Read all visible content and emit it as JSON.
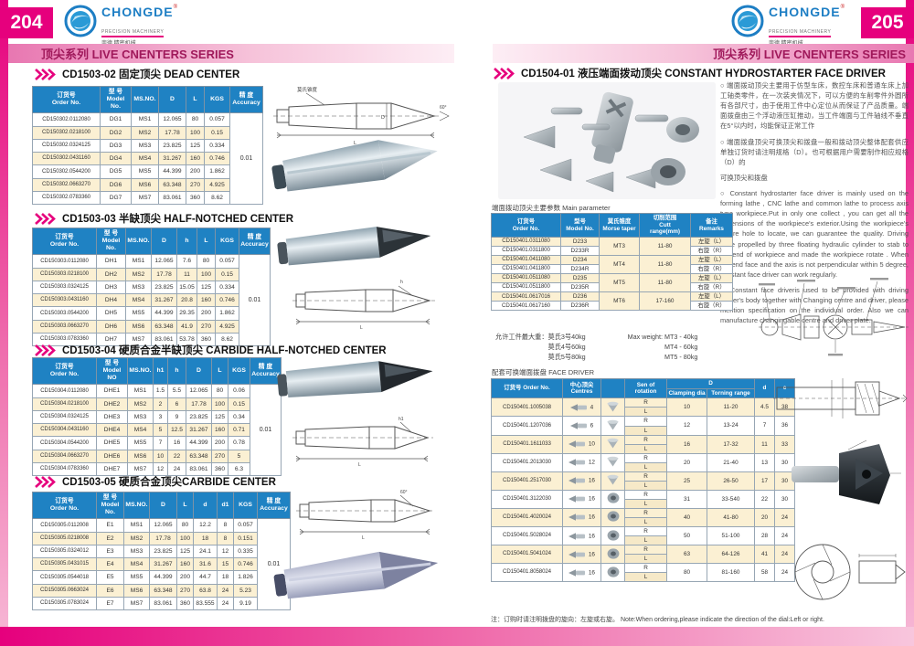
{
  "brand": {
    "name": "CHONGDE",
    "registered": "®",
    "subtitle": "PRECISION MACHINERY",
    "chinese": "崇德 精密机械"
  },
  "page_left": {
    "page_number": "204",
    "banner": "顶尖系列  LIVE CNENTERS SERIES",
    "sections": [
      {
        "title": "CD1503-02 固定顶尖 DEAD CENTER",
        "table": {
          "headers": [
            "订货号\nOrder No.",
            "型 号\nModel No.",
            "MS.NO.",
            "D",
            "L",
            "KGS"
          ],
          "accuracy_header": "精 度\nAccuracy",
          "accuracy": "0.01",
          "rows": [
            [
              "CD150302.0112080",
              "DG1",
              "MS1",
              "12.065",
              "80",
              "0.057"
            ],
            [
              "CD150302.0218100",
              "DG2",
              "MS2",
              "17.78",
              "100",
              "0.15"
            ],
            [
              "CD150302.0324125",
              "DG3",
              "MS3",
              "23.825",
              "125",
              "0.334"
            ],
            [
              "CD150302.0431160",
              "DG4",
              "MS4",
              "31.267",
              "160",
              "0.746"
            ],
            [
              "CD150302.0544200",
              "DG5",
              "MS5",
              "44.399",
              "200",
              "1.862"
            ],
            [
              "CD150302.0663270",
              "DG6",
              "MS6",
              "63.348",
              "270",
              "4.925"
            ],
            [
              "CD150302.0783360",
              "DG7",
              "MS7",
              "83.061",
              "360",
              "8.62"
            ]
          ]
        }
      },
      {
        "title": "CD1503-03 半缺顶尖 HALF-NOTCHED CENTER",
        "table": {
          "headers": [
            "订货号\nOrder No.",
            "型 号\nModel No.",
            "MS.NO.",
            "D",
            "h",
            "L",
            "KGS"
          ],
          "accuracy_header": "精 度\nAccuracy",
          "accuracy": "0.01",
          "rows": [
            [
              "CD150303.0112080",
              "DH1",
              "MS1",
              "12.065",
              "7.6",
              "80",
              "0.057"
            ],
            [
              "CD150303.0218100",
              "DH2",
              "MS2",
              "17.78",
              "11",
              "100",
              "0.15"
            ],
            [
              "CD150303.0324125",
              "DH3",
              "MS3",
              "23.825",
              "15.05",
              "125",
              "0.334"
            ],
            [
              "CD150303.0431160",
              "DH4",
              "MS4",
              "31.267",
              "20.8",
              "160",
              "0.746"
            ],
            [
              "CD150303.0544200",
              "DH5",
              "MS5",
              "44.399",
              "29.35",
              "200",
              "1.862"
            ],
            [
              "CD150303.0663270",
              "DH6",
              "MS6",
              "63.348",
              "41.9",
              "270",
              "4.925"
            ],
            [
              "CD150303.0783360",
              "DH7",
              "MS7",
              "83.061",
              "53.78",
              "360",
              "8.62"
            ]
          ]
        }
      },
      {
        "title": "CD1503-04 硬质合金半缺顶尖 CARBIDE HALF-NOTCHED CENTER",
        "table": {
          "headers": [
            "订货号\nOrder No.",
            "型 号\nModel NO",
            "MS.NO.",
            "h1",
            "h",
            "D",
            "L",
            "KGS"
          ],
          "accuracy_header": "精 度\nAccuracy",
          "accuracy": "0.01",
          "rows": [
            [
              "CD150304.0112080",
              "DHE1",
              "MS1",
              "1.5",
              "5.5",
              "12.065",
              "80",
              "0.06"
            ],
            [
              "CD150304.0218100",
              "DHE2",
              "MS2",
              "2",
              "6",
              "17.78",
              "100",
              "0.15"
            ],
            [
              "CD150304.0324125",
              "DHE3",
              "MS3",
              "3",
              "9",
              "23.825",
              "125",
              "0.34"
            ],
            [
              "CD150304.0431160",
              "DHE4",
              "MS4",
              "5",
              "12.5",
              "31.267",
              "160",
              "0.71"
            ],
            [
              "CD150304.0544200",
              "DHE5",
              "MS5",
              "7",
              "16",
              "44.399",
              "200",
              "0.78"
            ],
            [
              "CD150304.0663270",
              "DHE6",
              "MS6",
              "10",
              "22",
              "63.348",
              "270",
              "5"
            ],
            [
              "CD150304.0783360",
              "DHE7",
              "MS7",
              "12",
              "24",
              "83.061",
              "360",
              "6.3"
            ]
          ]
        }
      },
      {
        "title": "CD1503-05 硬质合金顶尖CARBIDE CENTER",
        "table": {
          "headers": [
            "订货号\nOrder No.",
            "型 号\nModel No.",
            "MS.NO.",
            "D",
            "L",
            "d",
            "d1",
            "KGS"
          ],
          "accuracy_header": "精 度\nAccuracy",
          "accuracy": "0.01",
          "rows": [
            [
              "CD150305.0112008",
              "E1",
              "MS1",
              "12.065",
              "80",
              "12.2",
              "8",
              "0.057"
            ],
            [
              "CD150305.0218008",
              "E2",
              "MS2",
              "17.78",
              "100",
              "18",
              "8",
              "0.151"
            ],
            [
              "CD150305.0324012",
              "E3",
              "MS3",
              "23.825",
              "125",
              "24.1",
              "12",
              "0.335"
            ],
            [
              "CD150305.0431015",
              "E4",
              "MS4",
              "31.267",
              "160",
              "31.6",
              "15",
              "0.746"
            ],
            [
              "CD150305.0544018",
              "E5",
              "MS5",
              "44.399",
              "200",
              "44.7",
              "18",
              "1.826"
            ],
            [
              "CD150305.0663024",
              "E6",
              "MS6",
              "63.348",
              "270",
              "63.8",
              "24",
              "5.23"
            ],
            [
              "CD150305.0783024",
              "E7",
              "MS7",
              "83.061",
              "360",
              "83.555",
              "24",
              "9.19"
            ]
          ]
        }
      }
    ]
  },
  "page_right": {
    "page_number": "205",
    "banner": "顶尖系列  LIVE CNENTERS SERIES",
    "title": "CD1504-01 液压端面拨动顶尖 CONSTANT HYDROSTARTER FACE DRIVER",
    "description": {
      "zh": [
        "○ 端面拨动顶尖主要用于仿型车床，数控车床和普通车床上加工轴类零件，在一次装夹情况下，可以方便的车削零件外圆所有各部尺寸，由于使用工件中心定位从而保证了产品质量。端面拨盘由三个浮动液压缸推动，当工件端面与工件轴线不垂直在5°以内时，均能保证正常工作",
        "○ 端面拨盘顶尖可换顶尖和拨盘一般和拨动顶尖整体配套供应单独订货时请注明规格（D）。也可根据用户需要制作相应规格（D）的",
        "可换顶尖和拨盘"
      ],
      "en": [
        "○ Constant hydrostarter face driver is mainly used on the forming lathe , CNC lathe and common lathe to process axis type workpiece.Put in only one collect , you can get all the dimensions of the workpiece's exterior.Using the workpiece's centre hole to locate, we can guarantee the quality. Driving plate propelled by three floating hydraulic cylinder to stab to the end of workpiece and made the workpiece rotate . When the end face and the axis is not perpendicular within 5 degree, constant face driver can work regularly.",
        "○ Constant face driveris used to be provided with driving center's body together with Changing centre and driver, please mention specification on the individual order. Also we can manufacture changingable centre and driver plate."
      ]
    },
    "main_param": {
      "caption": "端面拨动顶尖主要参数 Main parameter",
      "headers": [
        "订货号\nOrder No.",
        "型号\nModel No.",
        "莫氏锥度\nMorse taper",
        "切削范围\nCutt\nrange(mm)",
        "备注\nRemarks"
      ],
      "groups": [
        {
          "taper": "MT3",
          "range": "11-80",
          "rows": [
            [
              "CD150401.0311080",
              "D233",
              "左旋（L）"
            ],
            [
              "CD150401.0311800",
              "D233R",
              "右旋（R）"
            ]
          ]
        },
        {
          "taper": "MT4",
          "range": "11-80",
          "rows": [
            [
              "CD150401.0411080",
              "D234",
              "左旋（L）"
            ],
            [
              "CD150401.0411800",
              "D234R",
              "右旋（R）"
            ]
          ]
        },
        {
          "taper": "MT5",
          "range": "11-80",
          "rows": [
            [
              "CD150401.0511080",
              "D235",
              "左旋（L）"
            ],
            [
              "CD150401.0511800",
              "D235R",
              "右旋（R）"
            ]
          ]
        },
        {
          "taper": "MT6",
          "range": "17-160",
          "rows": [
            [
              "CD150401.0617016",
              "D236",
              "左旋（L）"
            ],
            [
              "CD150401.0617160",
              "D236R",
              "右旋（R）"
            ]
          ]
        }
      ]
    },
    "weights": {
      "zh_label": "允许工件最大重：",
      "zh_lines": [
        "莫氏3号40kg",
        "莫氏4号60kg",
        "莫氏5号80kg"
      ],
      "en_label": "Max weight:",
      "en_lines": [
        "MT3 - 40kg",
        "MT4 - 60kg",
        "MT5 - 80kg"
      ]
    },
    "face_driver": {
      "caption": "配套可换端面拨盘  FACE DRIVER",
      "headers": {
        "order": "订货号 Order No.",
        "centres": "中心顶尖\nCentres",
        "sen": "Sen of rotation",
        "d_group": "D",
        "clamp": "Clamping dia",
        "torn": "Torning range",
        "d": "d",
        "c": "c"
      },
      "sen_values": [
        "R",
        "L"
      ],
      "rows": [
        {
          "order": "CD150401.1005038",
          "centre": "4",
          "clamp": "10",
          "range": "11-20",
          "d": "4.5",
          "c": "38"
        },
        {
          "order": "CD150401.1207036",
          "centre": "6",
          "clamp": "12",
          "range": "13-24",
          "d": "7",
          "c": "36"
        },
        {
          "order": "CD150401.1611033",
          "centre": "10",
          "clamp": "16",
          "range": "17-32",
          "d": "11",
          "c": "33"
        },
        {
          "order": "CD150401.2013030",
          "centre": "12",
          "clamp": "20",
          "range": "21-40",
          "d": "13",
          "c": "30"
        },
        {
          "order": "CD150401.2517030",
          "centre": "16",
          "clamp": "25",
          "range": "26-50",
          "d": "17",
          "c": "30"
        },
        {
          "order": "CD150401.3122030",
          "centre": "16",
          "clamp": "31",
          "range": "33-540",
          "d": "22",
          "c": "30"
        },
        {
          "order": "CD150401.4020024",
          "centre": "16",
          "clamp": "40",
          "range": "41-80",
          "d": "20",
          "c": "24"
        },
        {
          "order": "CD150401.5028024",
          "centre": "16",
          "clamp": "50",
          "range": "51-100",
          "d": "28",
          "c": "24"
        },
        {
          "order": "CD150401.5041024",
          "centre": "16",
          "clamp": "63",
          "range": "64-126",
          "d": "41",
          "c": "24"
        },
        {
          "order": "CD150401.8058024",
          "centre": "16",
          "clamp": "80",
          "range": "81-160",
          "d": "58",
          "c": "24"
        }
      ]
    },
    "note": "注：订购时请注明拨盘的旋向：左旋或右旋。  Note:When ordering,please indicate the direction of the dial:Left or right."
  }
}
